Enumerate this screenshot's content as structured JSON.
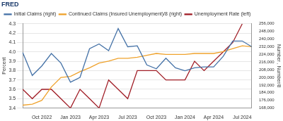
{
  "chart_data": {
    "type": "line",
    "title": "FRED",
    "ylabel": "Percent",
    "y2label": "Number , Number/8",
    "categories": [
      null,
      null,
      "Oct 2022",
      null,
      null,
      "Jan 2023",
      null,
      null,
      "Apr 2023",
      null,
      null,
      "Jul 2023",
      null,
      null,
      "Oct 2023",
      null,
      null,
      "Jan 2024",
      null,
      null,
      "Apr 2024",
      null,
      null,
      "Jul 2024",
      null
    ],
    "series": [
      {
        "name": "Initial Claims (right)",
        "color": "#4572a7",
        "axis": "y2",
        "values": [
          226000,
          202000,
          212000,
          225000,
          215000,
          195000,
          200000,
          230000,
          235000,
          228000,
          251000,
          232000,
          233000,
          213000,
          209000,
          220000,
          210000,
          207000,
          210000,
          211000,
          211000,
          222000,
          238000,
          238000,
          232000
        ]
      },
      {
        "name": "Continued Claims (Insured Unemployment)/8 (right)",
        "color": "#efa22c",
        "axis": "y2",
        "values": [
          171000,
          172000,
          176000,
          190000,
          200000,
          201000,
          206000,
          210000,
          215000,
          217000,
          220000,
          220000,
          221000,
          223000,
          225000,
          224000,
          224000,
          224000,
          225000,
          225000,
          225000,
          227000,
          230000,
          233000,
          232000
        ]
      },
      {
        "name": "Unemployment Rate (left)",
        "color": "#a01d26",
        "axis": "y",
        "values": [
          3.6,
          3.5,
          3.6,
          3.6,
          3.5,
          3.4,
          3.6,
          3.5,
          3.4,
          3.7,
          3.6,
          3.5,
          3.8,
          3.8,
          3.8,
          3.7,
          3.7,
          3.7,
          3.9,
          3.8,
          3.9,
          4.0,
          4.1,
          4.3,
          null
        ]
      }
    ],
    "ylim": [
      3.4,
      4.3
    ],
    "yticks": [
      3.4,
      3.5,
      3.6,
      3.7,
      3.8,
      3.9,
      {
        "value": 4.0,
        "label": "4.0"
      },
      4.1,
      4.2,
      4.3
    ],
    "y2lim": [
      168000,
      256000
    ],
    "y2ticks": [
      {
        "value": 168000,
        "label": "168,000"
      },
      {
        "value": 176000,
        "label": "176,000"
      },
      {
        "value": 184000,
        "label": "184,000"
      },
      {
        "value": 192000,
        "label": "192,000"
      },
      {
        "value": 200000,
        "label": "200,000"
      },
      {
        "value": 208000,
        "label": "208,000"
      },
      {
        "value": 216000,
        "label": "216,000"
      },
      {
        "value": 224000,
        "label": "224,000"
      },
      {
        "value": 232000,
        "label": "232,000"
      },
      {
        "value": 240000,
        "label": "240,000"
      },
      {
        "value": 248000,
        "label": "248,000"
      },
      {
        "value": 256000,
        "label": "256,000"
      }
    ],
    "grid": true,
    "legend": "top-left"
  }
}
